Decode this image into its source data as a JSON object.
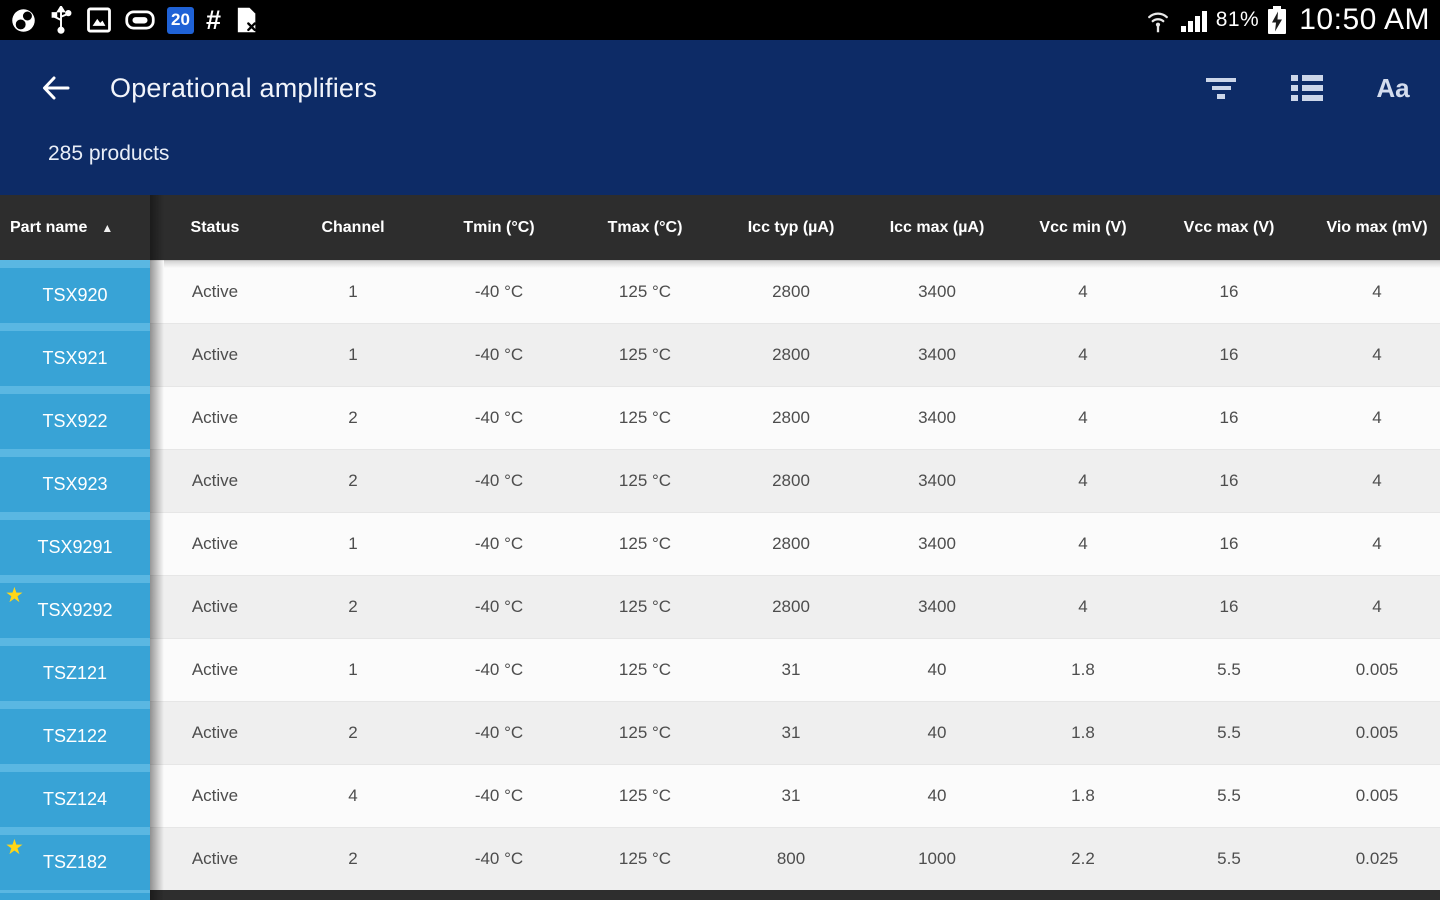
{
  "status_bar": {
    "left_icons": [
      "data-usage-icon",
      "usb-icon",
      "screenshot-icon",
      "battery-saver-icon",
      "calendar-badge",
      "hash-icon",
      "file-error-icon"
    ],
    "badge_number": "20",
    "battery_percent": "81%",
    "battery_state": "charging",
    "time": "10:50 AM"
  },
  "app_header": {
    "title": "Operational amplifiers",
    "subtitle": "285 products",
    "back_label": "back",
    "font_size_label": "Aa",
    "action_icons": [
      "filter-icon",
      "list-view-icon",
      "font-size-icon"
    ]
  },
  "table": {
    "sort": {
      "column": "Part name",
      "direction": "ascending"
    },
    "columns": [
      "Part name",
      "Status",
      "Channel",
      "Tmin (°C)",
      "Tmax (°C)",
      "Icc typ (µA)",
      "Icc max (µA)",
      "Vcc min (V)",
      "Vcc max (V)",
      "Vio max (mV)"
    ],
    "rows": [
      {
        "part": "TSX920",
        "favorite": false,
        "status": "Active",
        "channel": "1",
        "tmin": "-40 °C",
        "tmax": "125 °C",
        "icc_typ": "2800",
        "icc_max": "3400",
        "vcc_min": "4",
        "vcc_max": "16",
        "vio_max": "4"
      },
      {
        "part": "TSX921",
        "favorite": false,
        "status": "Active",
        "channel": "1",
        "tmin": "-40 °C",
        "tmax": "125 °C",
        "icc_typ": "2800",
        "icc_max": "3400",
        "vcc_min": "4",
        "vcc_max": "16",
        "vio_max": "4"
      },
      {
        "part": "TSX922",
        "favorite": false,
        "status": "Active",
        "channel": "2",
        "tmin": "-40 °C",
        "tmax": "125 °C",
        "icc_typ": "2800",
        "icc_max": "3400",
        "vcc_min": "4",
        "vcc_max": "16",
        "vio_max": "4"
      },
      {
        "part": "TSX923",
        "favorite": false,
        "status": "Active",
        "channel": "2",
        "tmin": "-40 °C",
        "tmax": "125 °C",
        "icc_typ": "2800",
        "icc_max": "3400",
        "vcc_min": "4",
        "vcc_max": "16",
        "vio_max": "4"
      },
      {
        "part": "TSX9291",
        "favorite": false,
        "status": "Active",
        "channel": "1",
        "tmin": "-40 °C",
        "tmax": "125 °C",
        "icc_typ": "2800",
        "icc_max": "3400",
        "vcc_min": "4",
        "vcc_max": "16",
        "vio_max": "4"
      },
      {
        "part": "TSX9292",
        "favorite": true,
        "status": "Active",
        "channel": "2",
        "tmin": "-40 °C",
        "tmax": "125 °C",
        "icc_typ": "2800",
        "icc_max": "3400",
        "vcc_min": "4",
        "vcc_max": "16",
        "vio_max": "4"
      },
      {
        "part": "TSZ121",
        "favorite": false,
        "status": "Active",
        "channel": "1",
        "tmin": "-40 °C",
        "tmax": "125 °C",
        "icc_typ": "31",
        "icc_max": "40",
        "vcc_min": "1.8",
        "vcc_max": "5.5",
        "vio_max": "0.005"
      },
      {
        "part": "TSZ122",
        "favorite": false,
        "status": "Active",
        "channel": "2",
        "tmin": "-40 °C",
        "tmax": "125 °C",
        "icc_typ": "31",
        "icc_max": "40",
        "vcc_min": "1.8",
        "vcc_max": "5.5",
        "vio_max": "0.005"
      },
      {
        "part": "TSZ124",
        "favorite": false,
        "status": "Active",
        "channel": "4",
        "tmin": "-40 °C",
        "tmax": "125 °C",
        "icc_typ": "31",
        "icc_max": "40",
        "vcc_min": "1.8",
        "vcc_max": "5.5",
        "vio_max": "0.005"
      },
      {
        "part": "TSZ182",
        "favorite": true,
        "status": "Active",
        "channel": "2",
        "tmin": "-40 °C",
        "tmax": "125 °C",
        "icc_typ": "800",
        "icc_max": "1000",
        "vcc_min": "2.2",
        "vcc_max": "5.5",
        "vio_max": "0.025"
      }
    ]
  },
  "colors": {
    "status_bar_bg": "#000000",
    "header_navy": "#0d2b66",
    "table_header_bg": "#2d2d2d",
    "part_column_blue": "#38a3d6",
    "part_divider_blue": "#5ab7e2",
    "favorite_star_yellow": "#ffd616",
    "badge_blue": "#1f62d6",
    "row_odd": "#fbfbfb",
    "row_even": "#efefef"
  }
}
